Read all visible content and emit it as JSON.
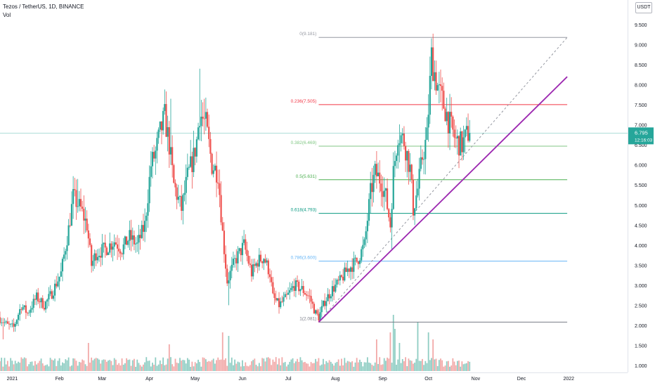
{
  "header": {
    "symbol_line": "Tezos / TetherUS, 1D, BINANCE",
    "volume_label": "Vol"
  },
  "currency_button": "USDT",
  "chart_data": {
    "type": "candlestick",
    "symbol": "Tezos / TetherUS",
    "interval": "1D",
    "exchange": "BINANCE",
    "ylim": [
      0.88,
      10.0
    ],
    "y_ticks": [
      "1.000",
      "1.500",
      "2.000",
      "2.500",
      "3.000",
      "3.500",
      "4.000",
      "4.500",
      "5.000",
      "5.500",
      "6.000",
      "6.500",
      "7.000",
      "7.500",
      "8.000",
      "8.500",
      "9.000",
      "9.500"
    ],
    "x_ticks": [
      {
        "date": "2021-01-01",
        "label": "2021"
      },
      {
        "date": "2021-02-01",
        "label": "Feb"
      },
      {
        "date": "2021-03-01",
        "label": "Mar"
      },
      {
        "date": "2021-04-01",
        "label": "Apr"
      },
      {
        "date": "2021-05-01",
        "label": "May"
      },
      {
        "date": "2021-06-01",
        "label": "Jun"
      },
      {
        "date": "2021-07-01",
        "label": "Jul"
      },
      {
        "date": "2021-08-01",
        "label": "Aug"
      },
      {
        "date": "2021-09-01",
        "label": "Sep"
      },
      {
        "date": "2021-10-01",
        "label": "Oct"
      },
      {
        "date": "2021-11-01",
        "label": "Nov"
      },
      {
        "date": "2021-12-01",
        "label": "Dec"
      },
      {
        "date": "2022-01-01",
        "label": "2022"
      }
    ],
    "x_range": [
      "2020-12-24",
      "2022-01-29"
    ],
    "price_path": [
      [
        "2020-12-24",
        2.2
      ],
      [
        "2020-12-30",
        2.0
      ],
      [
        "2021-01-03",
        1.95
      ],
      [
        "2021-01-08",
        2.5
      ],
      [
        "2021-01-12",
        2.3
      ],
      [
        "2021-01-18",
        2.7
      ],
      [
        "2021-01-23",
        2.5
      ],
      [
        "2021-01-28",
        2.8
      ],
      [
        "2021-02-03",
        3.3
      ],
      [
        "2021-02-08",
        4.4
      ],
      [
        "2021-02-11",
        5.2
      ],
      [
        "2021-02-16",
        4.9
      ],
      [
        "2021-02-20",
        4.5
      ],
      [
        "2021-02-23",
        3.5
      ],
      [
        "2021-02-26",
        3.8
      ],
      [
        "2021-03-04",
        3.9
      ],
      [
        "2021-03-10",
        4.1
      ],
      [
        "2021-03-15",
        3.9
      ],
      [
        "2021-03-20",
        4.2
      ],
      [
        "2021-03-25",
        4.0
      ],
      [
        "2021-03-30",
        4.5
      ],
      [
        "2021-04-03",
        6.0
      ],
      [
        "2021-04-06",
        6.3
      ],
      [
        "2021-04-09",
        6.8
      ],
      [
        "2021-04-12",
        7.2
      ],
      [
        "2021-04-15",
        6.5
      ],
      [
        "2021-04-18",
        5.5
      ],
      [
        "2021-04-23",
        4.9
      ],
      [
        "2021-04-27",
        5.7
      ],
      [
        "2021-05-01",
        6.2
      ],
      [
        "2021-05-03",
        6.6
      ],
      [
        "2021-05-05",
        7.3
      ],
      [
        "2021-05-09",
        7.0
      ],
      [
        "2021-05-13",
        6.0
      ],
      [
        "2021-05-17",
        5.8
      ],
      [
        "2021-05-20",
        4.3
      ],
      [
        "2021-05-23",
        3.1
      ],
      [
        "2021-05-28",
        3.6
      ],
      [
        "2021-06-03",
        4.0
      ],
      [
        "2021-06-08",
        3.3
      ],
      [
        "2021-06-12",
        3.6
      ],
      [
        "2021-06-16",
        3.7
      ],
      [
        "2021-06-20",
        3.3
      ],
      [
        "2021-06-22",
        2.7
      ],
      [
        "2021-06-26",
        2.5
      ],
      [
        "2021-07-01",
        2.7
      ],
      [
        "2021-07-06",
        3.0
      ],
      [
        "2021-07-11",
        2.9
      ],
      [
        "2021-07-16",
        2.7
      ],
      [
        "2021-07-20",
        2.3
      ],
      [
        "2021-07-22",
        2.2
      ],
      [
        "2021-07-26",
        2.6
      ],
      [
        "2021-07-31",
        2.9
      ],
      [
        "2021-08-05",
        3.1
      ],
      [
        "2021-08-10",
        3.4
      ],
      [
        "2021-08-16",
        3.6
      ],
      [
        "2021-08-21",
        4.0
      ],
      [
        "2021-08-25",
        5.3
      ],
      [
        "2021-08-28",
        5.8
      ],
      [
        "2021-09-01",
        5.6
      ],
      [
        "2021-09-04",
        5.2
      ],
      [
        "2021-09-07",
        4.5
      ],
      [
        "2021-09-09",
        5.8
      ],
      [
        "2021-09-12",
        6.8
      ],
      [
        "2021-09-16",
        6.6
      ],
      [
        "2021-09-20",
        5.9
      ],
      [
        "2021-09-22",
        4.9
      ],
      [
        "2021-09-25",
        5.4
      ],
      [
        "2021-09-28",
        6.2
      ],
      [
        "2021-10-01",
        6.7
      ],
      [
        "2021-10-04",
        8.7
      ],
      [
        "2021-10-06",
        8.3
      ],
      [
        "2021-10-09",
        7.8
      ],
      [
        "2021-10-13",
        7.4
      ],
      [
        "2021-10-16",
        7.0
      ],
      [
        "2021-10-20",
        6.6
      ],
      [
        "2021-10-24",
        6.5
      ],
      [
        "2021-10-28",
        6.8
      ]
    ],
    "fib_levels": [
      {
        "ratio": "0",
        "price": 9.181,
        "label": "0(9.181)",
        "color": "#9598a1"
      },
      {
        "ratio": "0.236",
        "price": 7.505,
        "label": "0.236(7.505)",
        "color": "#f23645"
      },
      {
        "ratio": "0.382",
        "price": 6.469,
        "label": "0.382(6.469)",
        "color": "#81c784"
      },
      {
        "ratio": "0.5",
        "price": 5.631,
        "label": "0.5(5.631)",
        "color": "#4caf50"
      },
      {
        "ratio": "0.618",
        "price": 4.793,
        "label": "0.618(4.793)",
        "color": "#089981"
      },
      {
        "ratio": "0.786",
        "price": 3.6,
        "label": "0.786(3.600)",
        "color": "#64b5f6"
      },
      {
        "ratio": "1",
        "price": 2.081,
        "label": "1(2.081)",
        "color": "#787b86"
      }
    ],
    "fib_range": {
      "start": "2021-07-21",
      "end": "2021-12-31"
    },
    "fib_diagonal": [
      [
        "2021-07-21",
        2.081
      ],
      [
        "2021-12-31",
        9.181
      ]
    ],
    "trendline": {
      "points": [
        [
          "2021-07-21",
          2.081
        ],
        [
          "2021-12-31",
          8.2
        ]
      ],
      "color": "#9c27b0"
    },
    "last_price": {
      "value": "6.795",
      "countdown": "12:16:03",
      "color": "#26a69a"
    },
    "colors": {
      "up": "#26a69a",
      "down": "#ef5350",
      "vol_up": "#8fcdc3",
      "vol_down": "#f2a9a8"
    }
  }
}
